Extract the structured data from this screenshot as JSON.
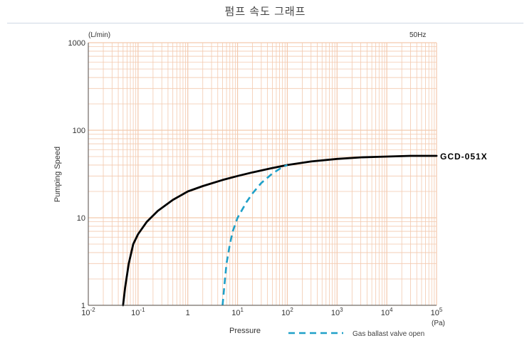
{
  "page_title": "펌프 속도 그래프",
  "chart_data": {
    "type": "line",
    "title": "",
    "xlabel": "Pressure",
    "x_unit": "(Pa)",
    "ylabel": "Pumping Speed",
    "y_unit": "(L/min)",
    "frequency_note": "50Hz",
    "x_scale": "log",
    "y_scale": "log",
    "xlim": [
      0.01,
      100000
    ],
    "ylim": [
      1,
      1000
    ],
    "grid": true,
    "x_ticks": [
      {
        "value": 0.01,
        "label": "10-2"
      },
      {
        "value": 0.1,
        "label": "10-1"
      },
      {
        "value": 1,
        "label": "1"
      },
      {
        "value": 10,
        "label": "101"
      },
      {
        "value": 100,
        "label": "102"
      },
      {
        "value": 1000,
        "label": "103"
      },
      {
        "value": 10000,
        "label": "104"
      },
      {
        "value": 100000,
        "label": "105"
      }
    ],
    "y_ticks": [
      {
        "value": 1,
        "label": "1"
      },
      {
        "value": 10,
        "label": "10"
      },
      {
        "value": 100,
        "label": "100"
      },
      {
        "value": 1000,
        "label": "1000"
      }
    ],
    "series": [
      {
        "name": "GCD-051X",
        "style": "solid",
        "color": "#000000",
        "x": [
          0.05,
          0.055,
          0.065,
          0.08,
          0.1,
          0.15,
          0.25,
          0.5,
          1,
          2,
          5,
          10,
          20,
          50,
          100,
          300,
          1000,
          3000,
          10000,
          30000,
          100000
        ],
        "y": [
          1,
          1.6,
          3,
          5,
          6.5,
          9,
          12,
          16,
          20,
          23,
          27,
          30,
          33,
          37,
          40,
          44,
          47,
          49,
          50,
          51,
          51
        ]
      },
      {
        "name": "Gas ballast valve open",
        "style": "dashed",
        "color": "#1fa0c8",
        "x": [
          5,
          5.5,
          6,
          7,
          8,
          10,
          15,
          20,
          30,
          50,
          80,
          100
        ],
        "y": [
          1,
          1.8,
          3,
          5,
          7,
          10,
          15,
          19,
          25,
          32,
          38,
          40
        ]
      }
    ],
    "legend_position": "bottom-right"
  },
  "colors": {
    "grid": "#f3c9ae",
    "axis": "#555555"
  }
}
